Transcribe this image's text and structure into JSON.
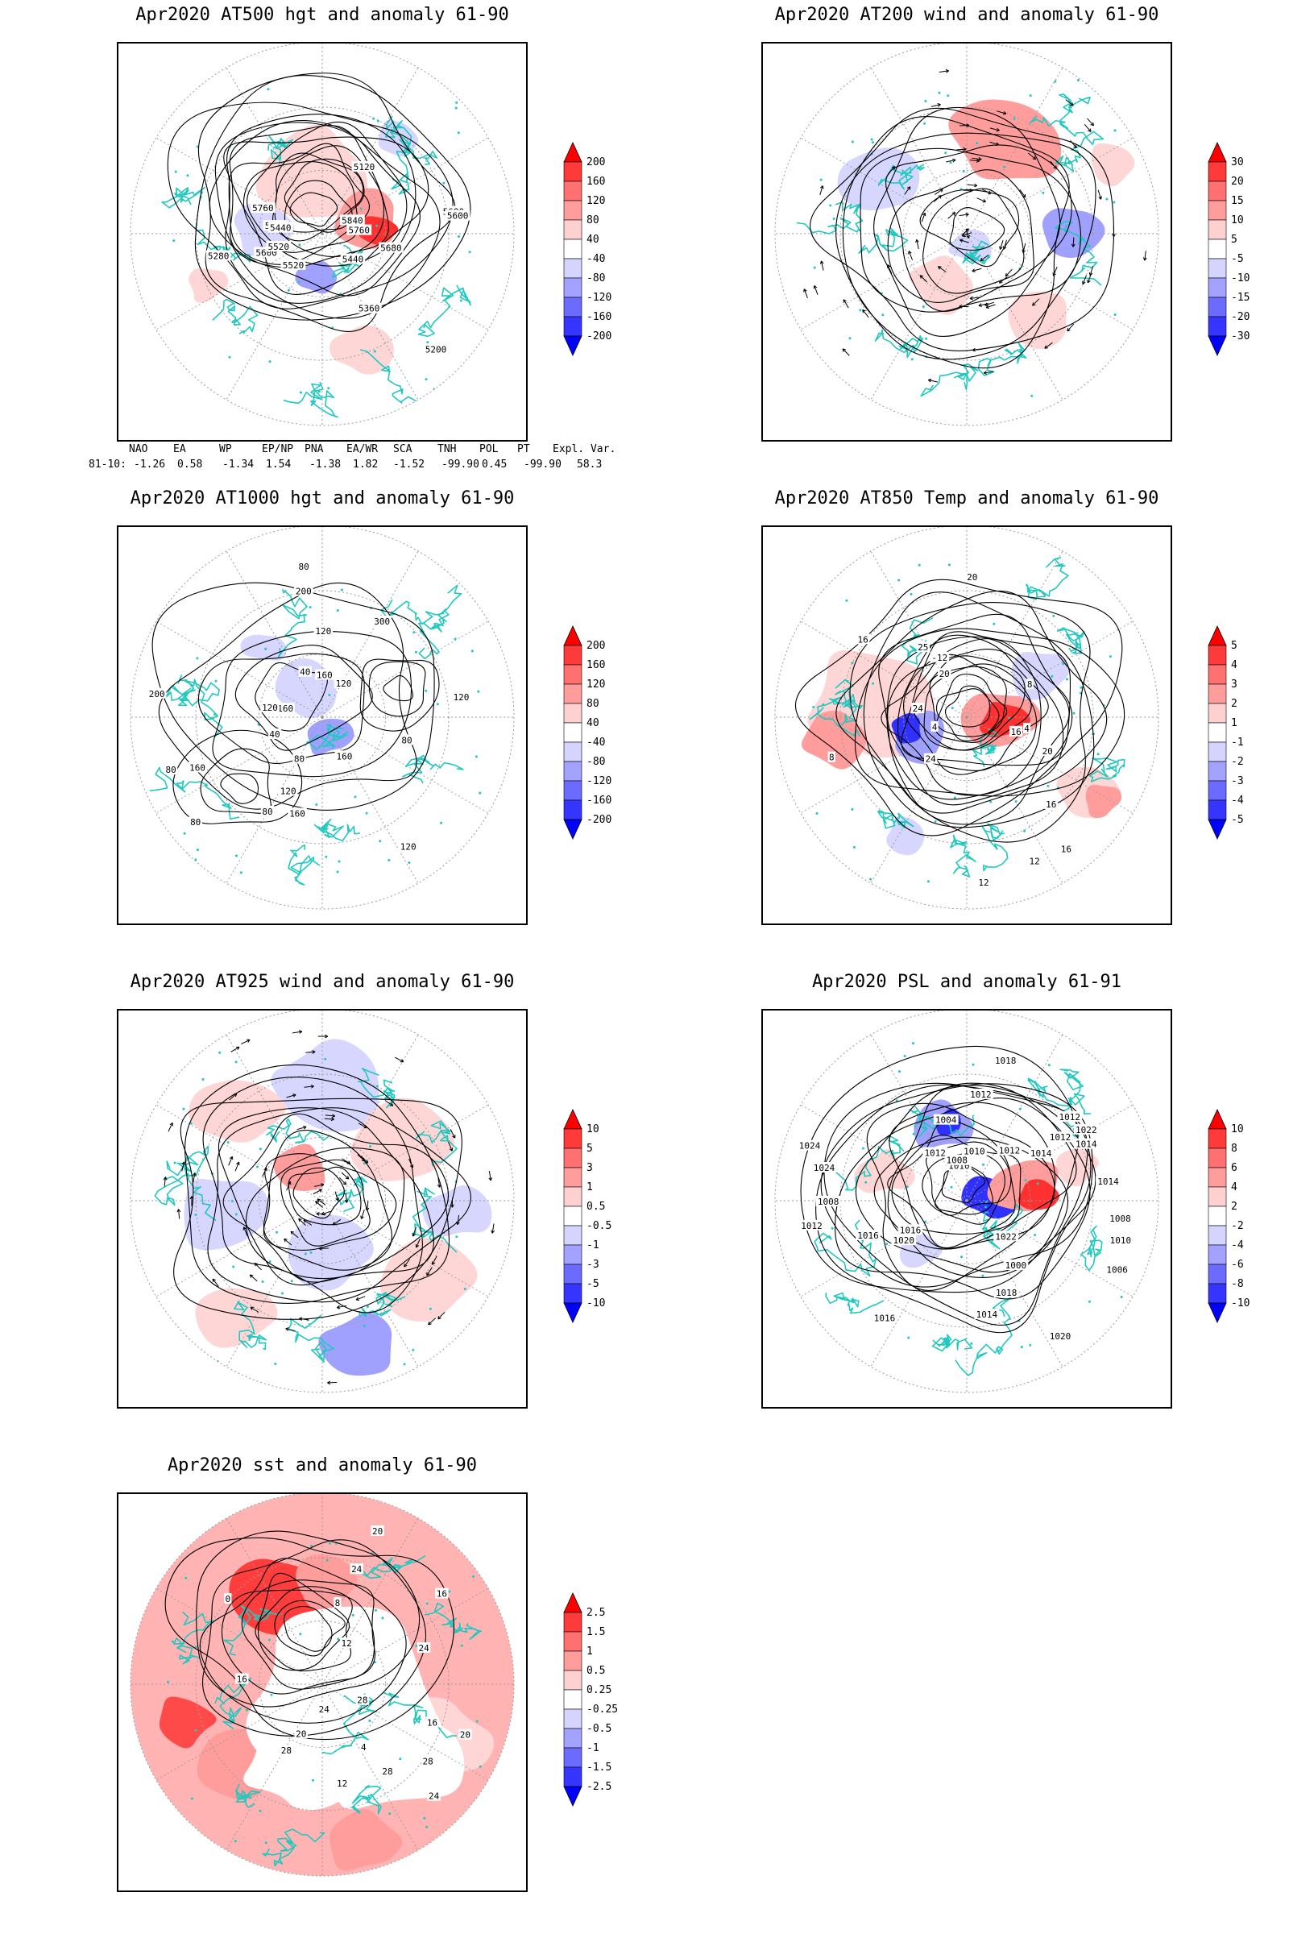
{
  "panels": [
    {
      "id": "p500",
      "title": "Apr2020 AT500 hgt and anomaly 61-90",
      "contour_labels": [
        "5840",
        "5760",
        "5680",
        "5600",
        "5520",
        "5440",
        "5120",
        "5200",
        "5280",
        "5360",
        "5440",
        "5520",
        "5600",
        "5680",
        "5760",
        "5840"
      ],
      "colorbar": {
        "labels": [
          "200",
          "160",
          "120",
          "80",
          "40",
          "-40",
          "-80",
          "-120",
          "-160",
          "-200"
        ],
        "colors": [
          "#ff0000",
          "#ff3a3a",
          "#ff7070",
          "#ff9d9d",
          "#ffd0d0",
          "#ffffff",
          "#d4d4ff",
          "#a3a3ff",
          "#6b6bff",
          "#3535ff",
          "#0000ff"
        ]
      }
    },
    {
      "id": "p200",
      "title": "Apr2020 AT200 wind and anomaly 61-90",
      "contour_labels": [],
      "colorbar": {
        "labels": [
          "30",
          "20",
          "15",
          "10",
          "5",
          "-5",
          "-10",
          "-15",
          "-20",
          "-30"
        ],
        "colors": [
          "#ff0000",
          "#ff3a3a",
          "#ff7070",
          "#ff9d9d",
          "#ffd0d0",
          "#ffffff",
          "#d4d4ff",
          "#a3a3ff",
          "#6b6bff",
          "#3535ff",
          "#0000ff"
        ]
      }
    },
    {
      "id": "p1000",
      "title": "Apr2020 AT1000 hgt and anomaly 61-90",
      "contour_labels": [
        "120",
        "160",
        "160",
        "200",
        "120",
        "120",
        "80",
        "160",
        "200",
        "300",
        "80",
        "40",
        "160",
        "40",
        "80",
        "120",
        "120",
        "80",
        "80",
        "120",
        "160",
        "80"
      ],
      "colorbar": {
        "labels": [
          "200",
          "160",
          "120",
          "80",
          "40",
          "-40",
          "-80",
          "-120",
          "-160",
          "-200"
        ],
        "colors": [
          "#ff0000",
          "#ff3a3a",
          "#ff7070",
          "#ff9d9d",
          "#ffd0d0",
          "#ffffff",
          "#d4d4ff",
          "#a3a3ff",
          "#6b6bff",
          "#3535ff",
          "#0000ff"
        ]
      }
    },
    {
      "id": "p850",
      "title": "Apr2020 AT850 Temp and anomaly 61-90",
      "contour_labels": [
        "16",
        "16",
        "12",
        "16",
        "24",
        "20",
        "-12",
        "8",
        "4",
        "4",
        "8",
        "12",
        "16",
        "20",
        "24",
        "20",
        "25"
      ],
      "colorbar": {
        "labels": [
          "5",
          "4",
          "3",
          "2",
          "1",
          "-1",
          "-2",
          "-3",
          "-4",
          "-5"
        ],
        "colors": [
          "#ff0000",
          "#ff3a3a",
          "#ff7070",
          "#ff9d9d",
          "#ffd0d0",
          "#ffffff",
          "#d4d4ff",
          "#a3a3ff",
          "#6b6bff",
          "#3535ff",
          "#0000ff"
        ]
      }
    },
    {
      "id": "p925",
      "title": "Apr2020 AT925 wind and anomaly 61-90",
      "contour_labels": [],
      "colorbar": {
        "labels": [
          "10",
          "5",
          "3",
          "1",
          "0.5",
          "-0.5",
          "-1",
          "-3",
          "-5",
          "-10"
        ],
        "colors": [
          "#ff0000",
          "#ff3a3a",
          "#ff7070",
          "#ff9d9d",
          "#ffd0d0",
          "#ffffff",
          "#d4d4ff",
          "#a3a3ff",
          "#6b6bff",
          "#3535ff",
          "#0000ff"
        ]
      }
    },
    {
      "id": "psl",
      "title": "Apr2020 PSL and anomaly 61-91",
      "contour_labels": [
        "1010",
        "1012",
        "1014",
        "1016",
        "1018",
        "1020",
        "1022",
        "1024",
        "1012",
        "1010",
        "1016",
        "1014",
        "1012",
        "1008",
        "1004",
        "1006",
        "1000",
        "1024",
        "1022",
        "1018",
        "1016",
        "1014",
        "1012",
        "1020",
        "1008",
        "1012",
        "1014",
        "1012",
        "1010",
        "1008"
      ],
      "colorbar": {
        "labels": [
          "10",
          "8",
          "6",
          "4",
          "2",
          "-2",
          "-4",
          "-6",
          "-8",
          "-10"
        ],
        "colors": [
          "#ff0000",
          "#ff3a3a",
          "#ff7070",
          "#ff9d9d",
          "#ffd0d0",
          "#ffffff",
          "#d4d4ff",
          "#a3a3ff",
          "#6b6bff",
          "#3535ff",
          "#0000ff"
        ]
      }
    },
    {
      "id": "sst",
      "title": "Apr2020 sst and anomaly 61-90",
      "contour_labels": [
        "28",
        "28",
        "24",
        "24",
        "20",
        "20",
        "16",
        "16",
        "12",
        "8",
        "4",
        "0",
        "28",
        "24",
        "20",
        "12",
        "16",
        "24",
        "28"
      ],
      "colorbar": {
        "labels": [
          "2.5",
          "1.5",
          "1",
          "0.5",
          "0.25",
          "-0.25",
          "-0.5",
          "-1",
          "-1.5",
          "-2.5"
        ],
        "colors": [
          "#ff0000",
          "#ff3a3a",
          "#ff7070",
          "#ff9d9d",
          "#ffd0d0",
          "#ffffff",
          "#d4d4ff",
          "#a3a3ff",
          "#6b6bff",
          "#3535ff",
          "#0000ff"
        ]
      }
    }
  ],
  "teleconnection": {
    "headers": [
      "NAO",
      "EA",
      "WP",
      "EP/NP",
      "PNA",
      "EA/WR",
      "SCA",
      "TNH",
      "POL",
      "PT",
      "Expl. Var."
    ],
    "row_label": "81-10:",
    "values": [
      "-1.26",
      "0.58",
      "-1.34",
      "1.54",
      "-1.38",
      "1.82",
      "-1.52",
      "-99.90",
      "0.45",
      "-99.90",
      "58.3"
    ]
  },
  "colors": {
    "coast": "#20c8c0",
    "contour": "#000000",
    "grid": "#9a9a9a"
  }
}
